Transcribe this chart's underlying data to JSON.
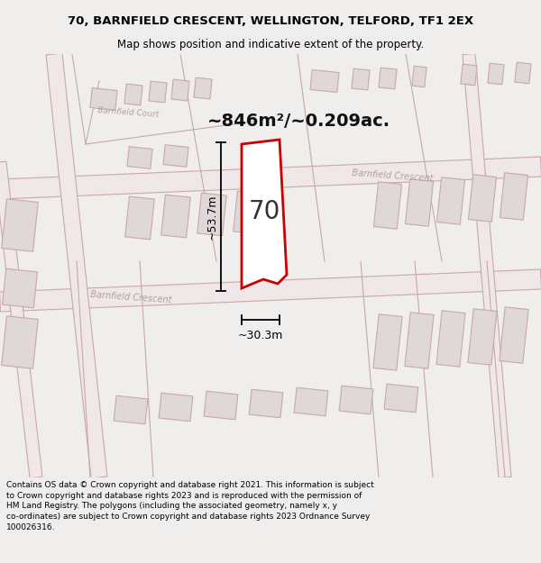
{
  "title": "70, BARNFIELD CRESCENT, WELLINGTON, TELFORD, TF1 2EX",
  "subtitle": "Map shows position and indicative extent of the property.",
  "area_label": "~846m²/~0.209ac.",
  "width_label": "~30.3m",
  "height_label": "~53.7m",
  "plot_number": "70",
  "footer_lines": [
    "Contains OS data © Crown copyright and database right 2021. This information is subject",
    "to Crown copyright and database rights 2023 and is reproduced with the permission of",
    "HM Land Registry. The polygons (including the associated geometry, namely x, y",
    "co-ordinates) are subject to Crown copyright and database rights 2023 Ordnance Survey",
    "100026316."
  ],
  "bg_color": "#f0eded",
  "map_bg": "#ffffff",
  "footer_bg": "#ffffff",
  "property_fill": "#ffffff",
  "property_edge": "#cc0000",
  "property_lw": 2.0,
  "road_outline_color": "#c8a8a8",
  "road_fill_color": "#f0e8e8",
  "building_fill": "#e0d8d8",
  "building_edge": "#c8a8a8",
  "street_text_color": "#b0a0a0",
  "title_fontsize": 9.5,
  "subtitle_fontsize": 8.5,
  "area_fontsize": 14,
  "plot_num_fontsize": 20,
  "dim_fontsize": 9,
  "footer_fontsize": 6.5
}
